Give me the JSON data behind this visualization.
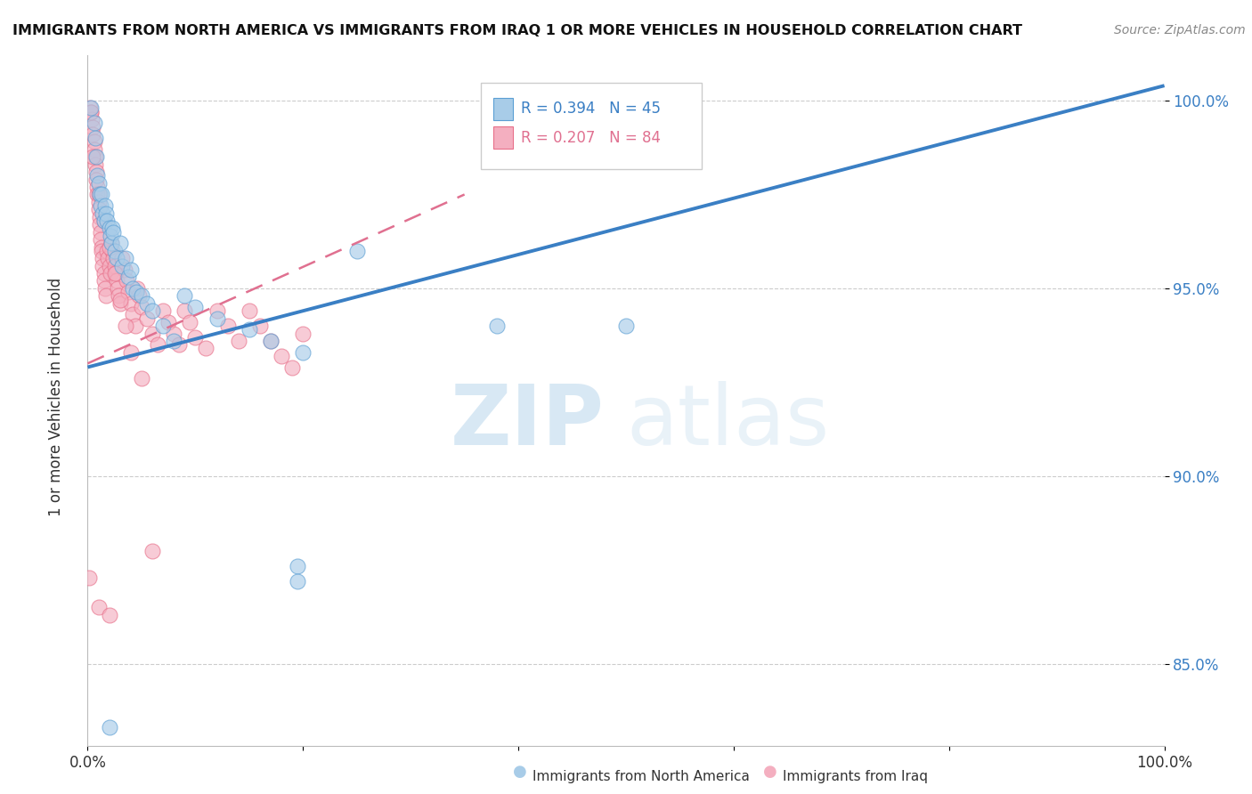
{
  "title": "IMMIGRANTS FROM NORTH AMERICA VS IMMIGRANTS FROM IRAQ 1 OR MORE VEHICLES IN HOUSEHOLD CORRELATION CHART",
  "source": "Source: ZipAtlas.com",
  "ylabel": "1 or more Vehicles in Household",
  "ytick_labels": [
    "85.0%",
    "90.0%",
    "95.0%",
    "100.0%"
  ],
  "ytick_values": [
    0.85,
    0.9,
    0.95,
    1.0
  ],
  "xtick_labels": [
    "0.0%",
    "",
    "",
    "",
    "",
    "100.0%"
  ],
  "xtick_values": [
    0.0,
    0.2,
    0.4,
    0.6,
    0.8,
    1.0
  ],
  "xmin": 0.0,
  "xmax": 1.0,
  "ymin": 0.828,
  "ymax": 1.012,
  "blue_R": 0.394,
  "blue_N": 45,
  "pink_R": 0.207,
  "pink_N": 84,
  "blue_color": "#a8cce8",
  "pink_color": "#f4afc0",
  "blue_edge_color": "#5b9fd4",
  "pink_edge_color": "#e8708a",
  "blue_trend_color": "#3a7fc4",
  "pink_trend_color": "#e07090",
  "watermark_zip": "ZIP",
  "watermark_atlas": "atlas",
  "blue_trend": [
    0.0,
    0.929,
    1.0,
    1.004
  ],
  "pink_trend": [
    0.0,
    0.93,
    0.35,
    0.975
  ],
  "blue_points": [
    [
      0.003,
      0.998
    ],
    [
      0.006,
      0.994
    ],
    [
      0.007,
      0.99
    ],
    [
      0.008,
      0.985
    ],
    [
      0.009,
      0.98
    ],
    [
      0.01,
      0.978
    ],
    [
      0.011,
      0.975
    ],
    [
      0.012,
      0.972
    ],
    [
      0.013,
      0.975
    ],
    [
      0.014,
      0.97
    ],
    [
      0.015,
      0.968
    ],
    [
      0.016,
      0.972
    ],
    [
      0.017,
      0.97
    ],
    [
      0.018,
      0.968
    ],
    [
      0.02,
      0.966
    ],
    [
      0.021,
      0.964
    ],
    [
      0.022,
      0.962
    ],
    [
      0.023,
      0.966
    ],
    [
      0.024,
      0.965
    ],
    [
      0.025,
      0.96
    ],
    [
      0.027,
      0.958
    ],
    [
      0.03,
      0.962
    ],
    [
      0.032,
      0.956
    ],
    [
      0.035,
      0.958
    ],
    [
      0.038,
      0.953
    ],
    [
      0.04,
      0.955
    ],
    [
      0.042,
      0.95
    ],
    [
      0.045,
      0.949
    ],
    [
      0.05,
      0.948
    ],
    [
      0.055,
      0.946
    ],
    [
      0.06,
      0.944
    ],
    [
      0.07,
      0.94
    ],
    [
      0.08,
      0.936
    ],
    [
      0.09,
      0.948
    ],
    [
      0.1,
      0.945
    ],
    [
      0.12,
      0.942
    ],
    [
      0.15,
      0.939
    ],
    [
      0.17,
      0.936
    ],
    [
      0.2,
      0.933
    ],
    [
      0.25,
      0.96
    ],
    [
      0.38,
      0.94
    ],
    [
      0.5,
      0.94
    ],
    [
      0.02,
      0.833
    ],
    [
      0.195,
      0.876
    ],
    [
      0.195,
      0.872
    ]
  ],
  "pink_points": [
    [
      0.002,
      0.998
    ],
    [
      0.003,
      0.997
    ],
    [
      0.004,
      0.995
    ],
    [
      0.005,
      0.993
    ],
    [
      0.005,
      0.991
    ],
    [
      0.006,
      0.989
    ],
    [
      0.006,
      0.987
    ],
    [
      0.007,
      0.985
    ],
    [
      0.007,
      0.983
    ],
    [
      0.008,
      0.981
    ],
    [
      0.008,
      0.979
    ],
    [
      0.009,
      0.977
    ],
    [
      0.009,
      0.975
    ],
    [
      0.01,
      0.973
    ],
    [
      0.01,
      0.971
    ],
    [
      0.011,
      0.969
    ],
    [
      0.011,
      0.967
    ],
    [
      0.012,
      0.965
    ],
    [
      0.012,
      0.963
    ],
    [
      0.013,
      0.961
    ],
    [
      0.013,
      0.96
    ],
    [
      0.014,
      0.958
    ],
    [
      0.014,
      0.956
    ],
    [
      0.015,
      0.954
    ],
    [
      0.015,
      0.952
    ],
    [
      0.016,
      0.95
    ],
    [
      0.017,
      0.948
    ],
    [
      0.018,
      0.96
    ],
    [
      0.019,
      0.958
    ],
    [
      0.02,
      0.956
    ],
    [
      0.021,
      0.954
    ],
    [
      0.022,
      0.962
    ],
    [
      0.023,
      0.96
    ],
    [
      0.024,
      0.958
    ],
    [
      0.025,
      0.956
    ],
    [
      0.026,
      0.954
    ],
    [
      0.027,
      0.952
    ],
    [
      0.028,
      0.95
    ],
    [
      0.029,
      0.948
    ],
    [
      0.03,
      0.946
    ],
    [
      0.032,
      0.958
    ],
    [
      0.034,
      0.955
    ],
    [
      0.036,
      0.952
    ],
    [
      0.038,
      0.949
    ],
    [
      0.04,
      0.946
    ],
    [
      0.042,
      0.943
    ],
    [
      0.044,
      0.94
    ],
    [
      0.046,
      0.95
    ],
    [
      0.048,
      0.948
    ],
    [
      0.05,
      0.945
    ],
    [
      0.055,
      0.942
    ],
    [
      0.06,
      0.938
    ],
    [
      0.065,
      0.935
    ],
    [
      0.07,
      0.944
    ],
    [
      0.075,
      0.941
    ],
    [
      0.08,
      0.938
    ],
    [
      0.085,
      0.935
    ],
    [
      0.09,
      0.944
    ],
    [
      0.095,
      0.941
    ],
    [
      0.1,
      0.937
    ],
    [
      0.11,
      0.934
    ],
    [
      0.12,
      0.944
    ],
    [
      0.13,
      0.94
    ],
    [
      0.14,
      0.936
    ],
    [
      0.15,
      0.944
    ],
    [
      0.16,
      0.94
    ],
    [
      0.17,
      0.936
    ],
    [
      0.18,
      0.932
    ],
    [
      0.19,
      0.929
    ],
    [
      0.2,
      0.938
    ],
    [
      0.003,
      0.997
    ],
    [
      0.005,
      0.985
    ],
    [
      0.01,
      0.975
    ],
    [
      0.015,
      0.968
    ],
    [
      0.02,
      0.961
    ],
    [
      0.025,
      0.954
    ],
    [
      0.03,
      0.947
    ],
    [
      0.035,
      0.94
    ],
    [
      0.04,
      0.933
    ],
    [
      0.05,
      0.926
    ],
    [
      0.001,
      0.873
    ],
    [
      0.01,
      0.865
    ],
    [
      0.02,
      0.863
    ],
    [
      0.06,
      0.88
    ]
  ]
}
